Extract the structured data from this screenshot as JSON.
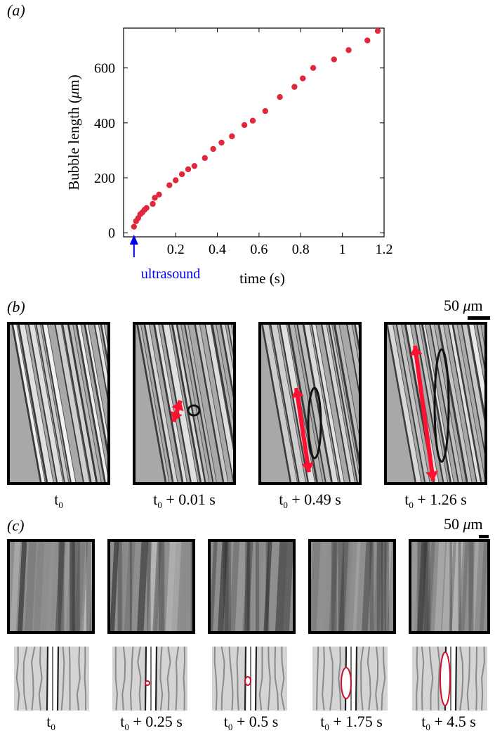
{
  "panel_a": {
    "label": "(a)",
    "annotation": "ultrasound",
    "annotation_color": "#0000ee",
    "marker_color": "#e0283c"
  },
  "chart_data": {
    "type": "scatter",
    "title": "",
    "xlabel": "time (s)",
    "ylabel_prefix": "Bubble length (",
    "ylabel_unit": "μ",
    "ylabel_suffix": "m)",
    "xlim": [
      -0.05,
      1.2
    ],
    "ylim": [
      -15,
      745
    ],
    "xticks": [
      0.2,
      0.4,
      0.6,
      0.8,
      1.0,
      1.2
    ],
    "xtick_labels": [
      "0.2",
      "0.4",
      "0.6",
      "0.8",
      "1",
      "1.2"
    ],
    "yticks": [
      0,
      200,
      400,
      600
    ],
    "ytick_labels": [
      "0",
      "200",
      "400",
      "600"
    ],
    "grid": false,
    "series": [
      {
        "x": [
          0.0,
          0.01,
          0.02,
          0.03,
          0.04,
          0.05,
          0.06,
          0.09,
          0.1,
          0.12,
          0.17,
          0.2,
          0.23,
          0.26,
          0.29,
          0.34,
          0.38,
          0.42,
          0.47,
          0.53,
          0.57,
          0.63,
          0.7,
          0.77,
          0.81,
          0.86,
          0.96,
          1.03,
          1.12,
          1.17
        ],
        "y": [
          22,
          42,
          53,
          67,
          74,
          83,
          90,
          105,
          127,
          139,
          173,
          191,
          213,
          231,
          243,
          272,
          305,
          328,
          351,
          392,
          408,
          443,
          494,
          531,
          562,
          600,
          631,
          665,
          700,
          735
        ]
      }
    ]
  },
  "panel_b": {
    "label": "(b)",
    "scale_value": "50",
    "scale_unit_mu": "μ",
    "scale_unit_m": "m",
    "times": [
      {
        "main": "t",
        "sub": "0",
        "rest": ""
      },
      {
        "main": "t",
        "sub": "0",
        "rest": " + 0.01 s"
      },
      {
        "main": "t",
        "sub": "0",
        "rest": " + 0.49 s"
      },
      {
        "main": "t",
        "sub": "0",
        "rest": " + 1.26 s"
      }
    ]
  },
  "panel_c": {
    "label": "(c)",
    "scale_value": "50",
    "scale_unit_mu": "μ",
    "scale_unit_m": "m",
    "times": [
      {
        "main": "t",
        "sub": "0",
        "rest": ""
      },
      {
        "main": "t",
        "sub": "0",
        "rest": " + 0.25 s"
      },
      {
        "main": "t",
        "sub": "0",
        "rest": " + 0.5 s"
      },
      {
        "main": "t",
        "sub": "0",
        "rest": " + 1.75 s"
      },
      {
        "main": "t",
        "sub": "0",
        "rest": " + 4.5 s"
      }
    ]
  }
}
